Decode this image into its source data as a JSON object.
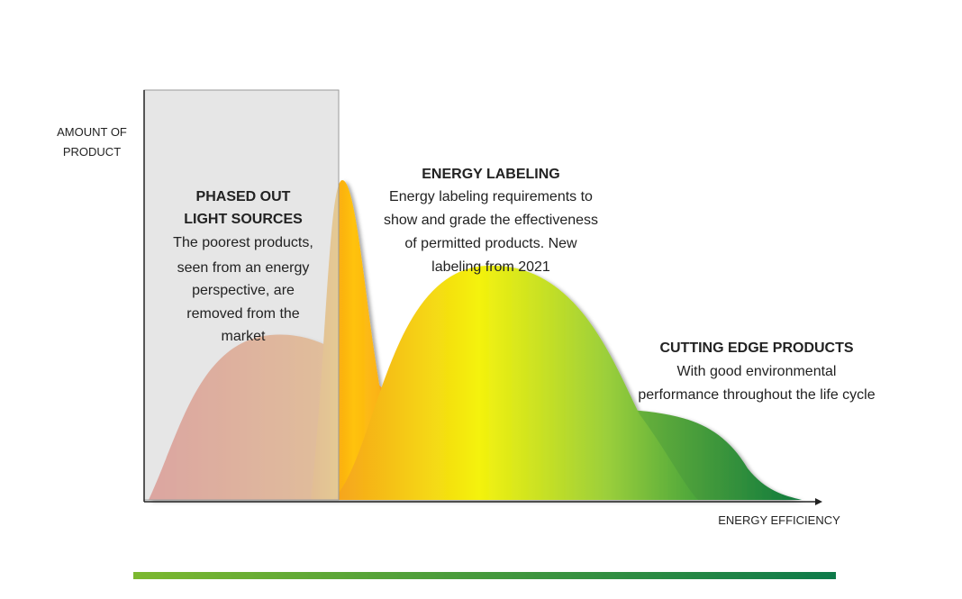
{
  "axes": {
    "y_label": [
      "AMOUNT OF",
      "PRODUCT"
    ],
    "x_label": "ENERGY EFFICIENCY"
  },
  "annotations": [
    {
      "title": [
        "PHASED OUT",
        "LIGHT SOURCES"
      ],
      "text": [
        "The poorest products,",
        "seen from an energy",
        "perspective, are",
        "removed from the",
        "market"
      ]
    },
    {
      "title": [
        "ENERGY LABELING"
      ],
      "text": [
        "Energy labeling requirements to",
        "show and grade the effectiveness",
        "of permitted products. New",
        "labeling from 2021"
      ]
    },
    {
      "title": [
        "CUTTING EDGE PRODUCTS"
      ],
      "text": [
        "With good environmental",
        "performance throughout the life cycle"
      ]
    }
  ]
}
